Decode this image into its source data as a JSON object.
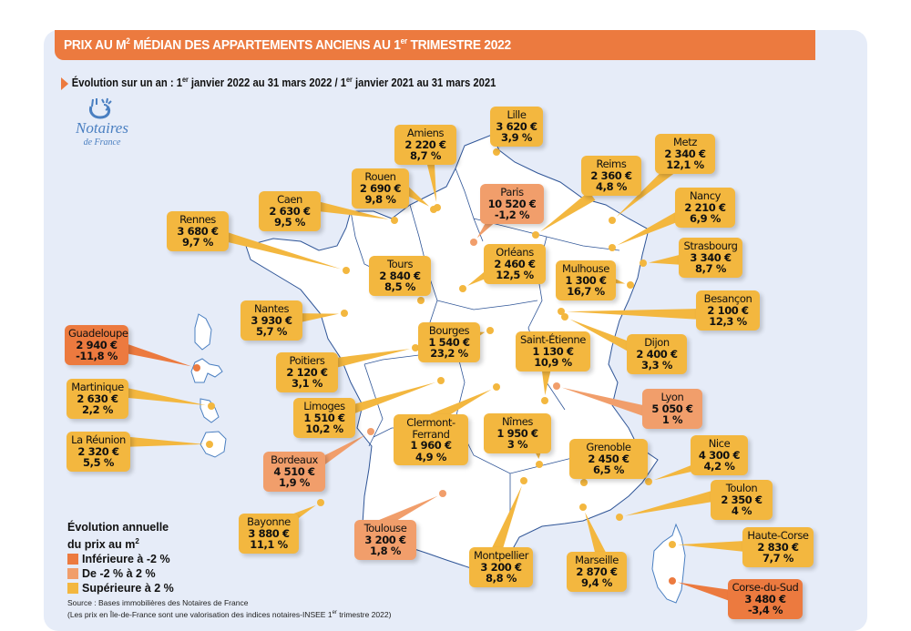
{
  "header": {
    "title_prefix": "PRIX AU M",
    "title_sup": "2",
    "title_mid": " MÉDIAN DES APPARTEMENTS ANCIENS AU 1",
    "title_sup2": "er",
    "title_suffix": " TRIMESTRE 2022"
  },
  "subtitle": {
    "part1": "Évolution sur un an : 1",
    "sup1": "er",
    "part2": " janvier 2022 au 31 mars 2022 / 1",
    "sup2": "er",
    "part3": " janvier 2021 au 31 mars 2021"
  },
  "logo": {
    "name": "Notaires",
    "sub": "de France",
    "icon": "notaires-logo-icon"
  },
  "colors": {
    "high": "#f3b73f",
    "mid": "#f19e6b",
    "low": "#ec7a3f",
    "background": "#e6ecf8",
    "land": "#ffffff",
    "border": "#2f5597"
  },
  "legend": {
    "title_line1": "Évolution annuelle",
    "title_line2": "du prix au m",
    "title_sup": "2",
    "items": [
      {
        "label": "Inférieure à -2 %",
        "category": "low"
      },
      {
        "label": "De -2 % à 2 %",
        "category": "mid"
      },
      {
        "label": "Supérieure à 2 %",
        "category": "high"
      }
    ]
  },
  "source": {
    "line1": "Source : Bases immobilières des Notaires de France",
    "line2a": "(Les prix en Île-de-France sont une valorisation des indices notaires-INSEE 1",
    "line2sup": "er",
    "line2b": " trimestre 2022)"
  },
  "cities": [
    {
      "city": "Lille",
      "price": "3 620 €",
      "pct": "3,9 %",
      "category": "high"
    },
    {
      "city": "Amiens",
      "price": "2 220 €",
      "pct": "8,7 %",
      "category": "high"
    },
    {
      "city": "Rouen",
      "price": "2 690 €",
      "pct": "9,8 %",
      "category": "high"
    },
    {
      "city": "Caen",
      "price": "2 630 €",
      "pct": "9,5 %",
      "category": "high"
    },
    {
      "city": "Rennes",
      "price": "3 680 €",
      "pct": "9,7 %",
      "category": "high"
    },
    {
      "city": "Paris",
      "price": "10 520 €",
      "pct": "-1,2 %",
      "category": "mid"
    },
    {
      "city": "Reims",
      "price": "2 360 €",
      "pct": "4,8 %",
      "category": "high"
    },
    {
      "city": "Metz",
      "price": "2 340 €",
      "pct": "12,1 %",
      "category": "high"
    },
    {
      "city": "Nancy",
      "price": "2 210 €",
      "pct": "6,9 %",
      "category": "high"
    },
    {
      "city": "Strasbourg",
      "price": "3 340 €",
      "pct": "8,7 %",
      "category": "high"
    },
    {
      "city": "Tours",
      "price": "2 840 €",
      "pct": "8,5 %",
      "category": "high"
    },
    {
      "city": "Orléans",
      "price": "2 460 €",
      "pct": "12,5 %",
      "category": "high"
    },
    {
      "city": "Mulhouse",
      "price": "1 300 €",
      "pct": "16,7 %",
      "category": "high"
    },
    {
      "city": "Besançon",
      "price": "2 100 €",
      "pct": "12,3 %",
      "category": "high"
    },
    {
      "city": "Nantes",
      "price": "3 930 €",
      "pct": "5,7 %",
      "category": "high"
    },
    {
      "city": "Bourges",
      "price": "1 540 €",
      "pct": "23,2 %",
      "category": "high"
    },
    {
      "city": "Saint-Étienne",
      "price": "1 130 €",
      "pct": "10,9 %",
      "category": "high"
    },
    {
      "city": "Dijon",
      "price": "2 400 €",
      "pct": "3,3 %",
      "category": "high"
    },
    {
      "city": "Poitiers",
      "price": "2 120 €",
      "pct": "3,1 %",
      "category": "high"
    },
    {
      "city": "Guadeloupe",
      "price": "2 940 €",
      "pct": "-11,8 %",
      "category": "low"
    },
    {
      "city": "Martinique",
      "price": "2 630 €",
      "pct": "2,2 %",
      "category": "high"
    },
    {
      "city": "La Réunion",
      "price": "2 320 €",
      "pct": "5,5 %",
      "category": "high"
    },
    {
      "city": "Limoges",
      "price": "1 510 €",
      "pct": "10,2 %",
      "category": "high"
    },
    {
      "city": "Lyon",
      "price": "5 050 €",
      "pct": "1 %",
      "category": "mid"
    },
    {
      "city": "Clermont-Ferrand",
      "city_line1": "Clermont-",
      "city_line2": "Ferrand",
      "price": "1 960 €",
      "pct": "4,9 %",
      "category": "high"
    },
    {
      "city": "Nîmes",
      "price": "1 950 €",
      "pct": "3 %",
      "category": "high"
    },
    {
      "city": "Grenoble",
      "price": "2 450 €",
      "pct": "6,5 %",
      "category": "high"
    },
    {
      "city": "Nice",
      "price": "4 300 €",
      "pct": "4,2 %",
      "category": "high"
    },
    {
      "city": "Bordeaux",
      "price": "4 510 €",
      "pct": "1,9 %",
      "category": "mid"
    },
    {
      "city": "Toulon",
      "price": "2 350 €",
      "pct": "4 %",
      "category": "high"
    },
    {
      "city": "Bayonne",
      "price": "3 880 €",
      "pct": "11,1 %",
      "category": "high"
    },
    {
      "city": "Toulouse",
      "price": "3 200 €",
      "pct": "1,8 %",
      "category": "mid"
    },
    {
      "city": "Haute-Corse",
      "price": "2 830 €",
      "pct": "7,7 %",
      "category": "high"
    },
    {
      "city": "Montpellier",
      "price": "3 200 €",
      "pct": "8,8 %",
      "category": "high"
    },
    {
      "city": "Marseille",
      "price": "2 870 €",
      "pct": "9,4 %",
      "category": "high"
    },
    {
      "city": "Corse-du-Sud",
      "price": "3 480 €",
      "pct": "-3,4 %",
      "category": "low"
    }
  ]
}
